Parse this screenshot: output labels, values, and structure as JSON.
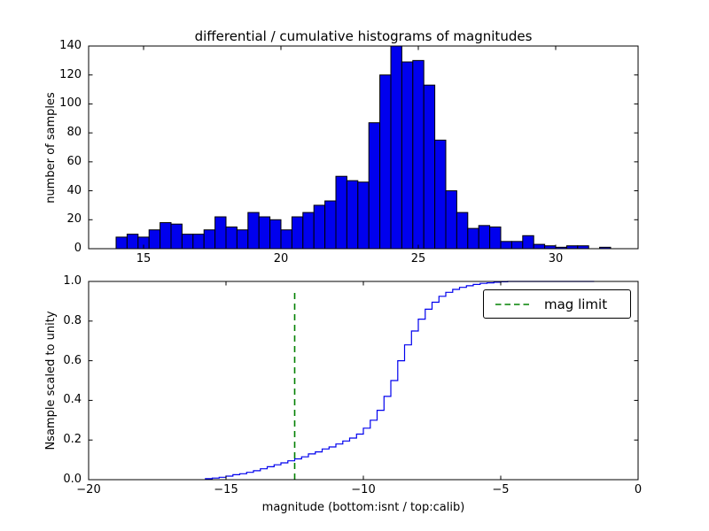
{
  "chart_data": [
    {
      "type": "bar",
      "title": "differential / cumulative histograms of magnitudes",
      "xlabel": "",
      "ylabel": "number of samples",
      "xlim": [
        13,
        33
      ],
      "ylim": [
        0,
        140
      ],
      "xticks": [
        15,
        20,
        25,
        30
      ],
      "yticks": [
        0,
        20,
        40,
        60,
        80,
        100,
        120,
        140
      ],
      "bar_color": "#0000ee",
      "bar_edge_color": "#000000",
      "bin_start": 14.0,
      "bin_width": 0.4,
      "counts": [
        8,
        10,
        8,
        13,
        18,
        17,
        10,
        10,
        13,
        22,
        15,
        13,
        25,
        22,
        20,
        13,
        22,
        25,
        30,
        33,
        50,
        47,
        46,
        87,
        120,
        140,
        129,
        130,
        113,
        75,
        40,
        25,
        14,
        16,
        15,
        5,
        5,
        9,
        3,
        2,
        1,
        2,
        2,
        0,
        1
      ],
      "grid": false
    },
    {
      "type": "line",
      "xlabel": "magnitude (bottom:isnt / top:calib)",
      "ylabel": "Nsample scaled to unity",
      "xlim": [
        -20,
        0
      ],
      "ylim": [
        0.0,
        1.0
      ],
      "xticks": [
        -20,
        -15,
        -10,
        -5,
        0
      ],
      "yticks": [
        0.0,
        0.2,
        0.4,
        0.6,
        0.8,
        1.0
      ],
      "line_color": "#0000ee",
      "steps": [
        [
          -15.75,
          0.005
        ],
        [
          -15.5,
          0.008
        ],
        [
          -15.25,
          0.012
        ],
        [
          -15.0,
          0.018
        ],
        [
          -14.75,
          0.025
        ],
        [
          -14.5,
          0.03
        ],
        [
          -14.25,
          0.037
        ],
        [
          -14.0,
          0.045
        ],
        [
          -13.75,
          0.055
        ],
        [
          -13.5,
          0.065
        ],
        [
          -13.25,
          0.075
        ],
        [
          -13.0,
          0.085
        ],
        [
          -12.75,
          0.095
        ],
        [
          -12.5,
          0.105
        ],
        [
          -12.25,
          0.115
        ],
        [
          -12.0,
          0.13
        ],
        [
          -11.75,
          0.14
        ],
        [
          -11.5,
          0.155
        ],
        [
          -11.25,
          0.165
        ],
        [
          -11.0,
          0.18
        ],
        [
          -10.75,
          0.195
        ],
        [
          -10.5,
          0.21
        ],
        [
          -10.25,
          0.23
        ],
        [
          -10.0,
          0.26
        ],
        [
          -9.75,
          0.3
        ],
        [
          -9.5,
          0.35
        ],
        [
          -9.25,
          0.42
        ],
        [
          -9.0,
          0.5
        ],
        [
          -8.75,
          0.6
        ],
        [
          -8.5,
          0.68
        ],
        [
          -8.25,
          0.75
        ],
        [
          -8.0,
          0.81
        ],
        [
          -7.75,
          0.86
        ],
        [
          -7.5,
          0.895
        ],
        [
          -7.25,
          0.925
        ],
        [
          -7.0,
          0.945
        ],
        [
          -6.75,
          0.96
        ],
        [
          -6.5,
          0.97
        ],
        [
          -6.25,
          0.978
        ],
        [
          -6.0,
          0.985
        ],
        [
          -5.75,
          0.99
        ],
        [
          -5.5,
          0.993
        ],
        [
          -5.25,
          0.996
        ],
        [
          -5.0,
          0.998
        ],
        [
          -4.75,
          1.0
        ],
        [
          -1.6,
          1.0
        ]
      ],
      "mag_limit": {
        "x": -12.5,
        "y_extent": [
          0.0,
          0.95
        ],
        "color": "#008000",
        "style": "dashed"
      },
      "legend": {
        "label": "mag limit",
        "position": "upper right"
      },
      "grid": false
    }
  ]
}
